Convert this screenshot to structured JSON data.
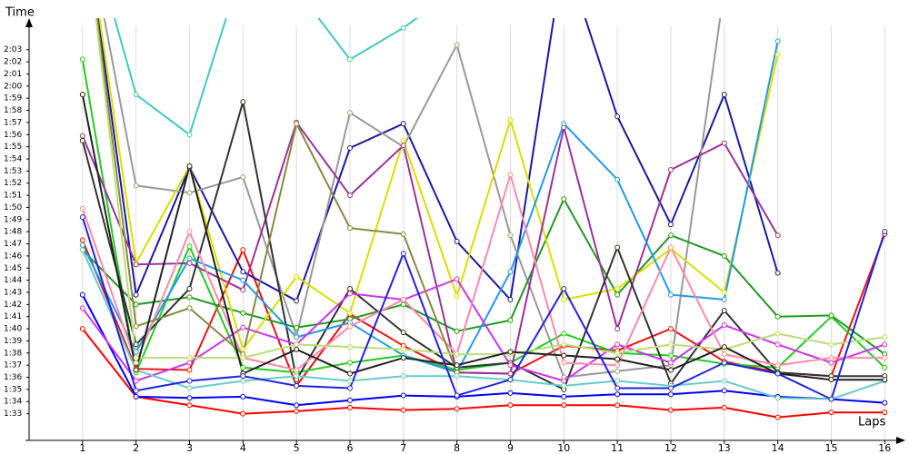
{
  "chart_data": {
    "type": "line",
    "y_label": "Time",
    "x_label": "Laps",
    "x": [
      1,
      2,
      3,
      4,
      5,
      6,
      7,
      8,
      9,
      10,
      11,
      12,
      13,
      14,
      15,
      16
    ],
    "xlim": [
      0,
      16.25
    ],
    "xticks": [
      1,
      2,
      3,
      4,
      5,
      6,
      7,
      8,
      9,
      10,
      11,
      12,
      13,
      14,
      15,
      16
    ],
    "ylim": [
      90.8,
      125
    ],
    "yticks": [
      {
        "value": 93,
        "label": "1:33"
      },
      {
        "value": 94,
        "label": "1:34"
      },
      {
        "value": 95,
        "label": "1:35"
      },
      {
        "value": 96,
        "label": "1:36"
      },
      {
        "value": 97,
        "label": "1:37"
      },
      {
        "value": 98,
        "label": "1:38"
      },
      {
        "value": 99,
        "label": "1:39"
      },
      {
        "value": 100,
        "label": "1:40"
      },
      {
        "value": 101,
        "label": "1:41"
      },
      {
        "value": 102,
        "label": "1:42"
      },
      {
        "value": 103,
        "label": "1:43"
      },
      {
        "value": 104,
        "label": "1:44"
      },
      {
        "value": 105,
        "label": "1:45"
      },
      {
        "value": 106,
        "label": "1:46"
      },
      {
        "value": 107,
        "label": "1:47"
      },
      {
        "value": 108,
        "label": "1:48"
      },
      {
        "value": 109,
        "label": "1:49"
      },
      {
        "value": 110,
        "label": "1:50"
      },
      {
        "value": 111,
        "label": "1:51"
      },
      {
        "value": 112,
        "label": "1:52"
      },
      {
        "value": 113,
        "label": "1:53"
      },
      {
        "value": 114,
        "label": "1:54"
      },
      {
        "value": 115,
        "label": "1:55"
      },
      {
        "value": 116,
        "label": "1:56"
      },
      {
        "value": 117,
        "label": "1:57"
      },
      {
        "value": 118,
        "label": "1:58"
      },
      {
        "value": 119,
        "label": "1:59"
      },
      {
        "value": 120,
        "label": "2:00"
      },
      {
        "value": 121,
        "label": "2:01"
      },
      {
        "value": 122,
        "label": "2:02"
      },
      {
        "value": 123,
        "label": "2:03"
      }
    ],
    "grid": true,
    "series": [
      {
        "color": "#ff0000",
        "values": [
          100.0,
          94.4,
          93.7,
          93.0,
          93.2,
          93.5,
          93.3,
          93.4,
          93.7,
          93.7,
          93.7,
          93.3,
          93.5,
          92.7,
          93.1,
          93.1
        ]
      },
      {
        "color": "#0000ff",
        "values": [
          102.8,
          94.4,
          94.3,
          94.4,
          93.7,
          94.1,
          94.5,
          94.4,
          94.7,
          94.4,
          94.6,
          94.6,
          94.9,
          94.4,
          94.2,
          93.9
        ]
      },
      {
        "color": "#ee1111",
        "values": [
          107.3,
          96.7,
          96.6,
          106.5,
          95.3,
          101.2,
          98.6,
          96.4,
          96.3,
          98.6,
          98.2,
          100.0,
          97.3,
          96.4,
          96.1,
          107.8
        ]
      },
      {
        "color": "#1a1aa0",
        "values": [
          135,
          102.8,
          113.3,
          104.7,
          102.3,
          114.9,
          116.9,
          107.2,
          102.4,
          131,
          117.5,
          108.6,
          119.3,
          104.6,
          null,
          null
        ]
      },
      {
        "color": "#40c8c8",
        "values": [
          135,
          119.3,
          116.0,
          130,
          128,
          122.2,
          124.8,
          128,
          null,
          null,
          null,
          null,
          null,
          null,
          null,
          null
        ]
      },
      {
        "color": "#999999",
        "values": [
          135,
          111.8,
          111.2,
          112.5,
          99.4,
          117.8,
          115.0,
          123.4,
          107.7,
          96.0,
          96.5,
          97.0,
          128,
          null,
          null,
          null
        ]
      },
      {
        "color": "#22cc22",
        "values": [
          122.2,
          96.4,
          106.8,
          96.8,
          96.4,
          97.2,
          97.8,
          96.6,
          97.2,
          99.6,
          98.0,
          97.8,
          97.1,
          96.8,
          101.0,
          96.8
        ]
      },
      {
        "color": "#229922",
        "values": [
          106.5,
          102.0,
          102.6,
          101.3,
          100.1,
          100.8,
          102.0,
          99.8,
          100.7,
          110.7,
          102.8,
          107.7,
          106.0,
          101.0,
          101.1,
          97.9
        ]
      },
      {
        "color": "#dddd00",
        "values": [
          135,
          105.4,
          113.4,
          98.3,
          104.3,
          101.3,
          115.5,
          102.7,
          117.2,
          102.4,
          103.3,
          106.6,
          103.0,
          122.6,
          null,
          null
        ]
      },
      {
        "color": "#993399",
        "values": [
          115.9,
          105.3,
          105.4,
          103.2,
          117.0,
          111.0,
          115.1,
          96.4,
          96.3,
          116.6,
          100.0,
          113.1,
          115.3,
          107.7,
          null,
          null
        ]
      },
      {
        "color": "#333333",
        "values": [
          115.5,
          98.7,
          103.3,
          118.7,
          95.8,
          103.3,
          99.7,
          96.8,
          97.2,
          95.0,
          106.7,
          95.5,
          101.5,
          96.4,
          96.1,
          96.1
        ]
      },
      {
        "color": "#2299ee",
        "values": [
          106.9,
          98.1,
          105.8,
          104.0,
          99.3,
          100.5,
          97.8,
          96.4,
          104.7,
          116.9,
          112.3,
          102.8,
          102.4,
          123.7,
          null,
          null
        ]
      },
      {
        "color": "#cc33ee",
        "values": [
          101.7,
          95.7,
          97.2,
          100.1,
          98.7,
          102.9,
          102.4,
          104.1,
          97.0,
          95.7,
          98.7,
          97.2,
          100.3,
          98.7,
          97.2,
          98.7
        ]
      },
      {
        "color": "#ff88aa",
        "values": [
          109.9,
          97.2,
          108.0,
          97.6,
          96.6,
          100.2,
          102.4,
          97.9,
          112.7,
          97.2,
          97.0,
          106.7,
          97.9,
          97.0,
          97.6,
          97.6
        ]
      },
      {
        "color": "#888844",
        "values": [
          135,
          100.2,
          101.7,
          97.9,
          116.9,
          108.3,
          107.8,
          96.4,
          null,
          null,
          null,
          null,
          null,
          null,
          null,
          null
        ]
      },
      {
        "color": "#bbdd77",
        "values": [
          135,
          97.6,
          97.6,
          97.6,
          98.7,
          98.5,
          98.3,
          97.9,
          97.9,
          98.7,
          98.0,
          98.7,
          98.3,
          99.6,
          98.7,
          99.3
        ]
      },
      {
        "color": "#66cccc",
        "values": [
          106.5,
          96.6,
          95.1,
          95.7,
          96.1,
          95.7,
          96.1,
          96.1,
          95.8,
          95.3,
          95.7,
          95.3,
          95.7,
          94.3,
          94.2,
          95.7
        ]
      },
      {
        "color": "#222222",
        "values": [
          119.3,
          96.6,
          113.4,
          96.3,
          98.3,
          96.3,
          97.6,
          97.0,
          98.1,
          97.8,
          97.5,
          96.6,
          98.5,
          96.3,
          95.8,
          95.8
        ]
      },
      {
        "color": "#2222dd",
        "values": [
          109.2,
          94.9,
          95.7,
          96.1,
          95.3,
          95.1,
          106.2,
          94.5,
          95.8,
          103.3,
          95.1,
          95.1,
          97.2,
          96.3,
          94.2,
          108.0
        ]
      }
    ]
  }
}
